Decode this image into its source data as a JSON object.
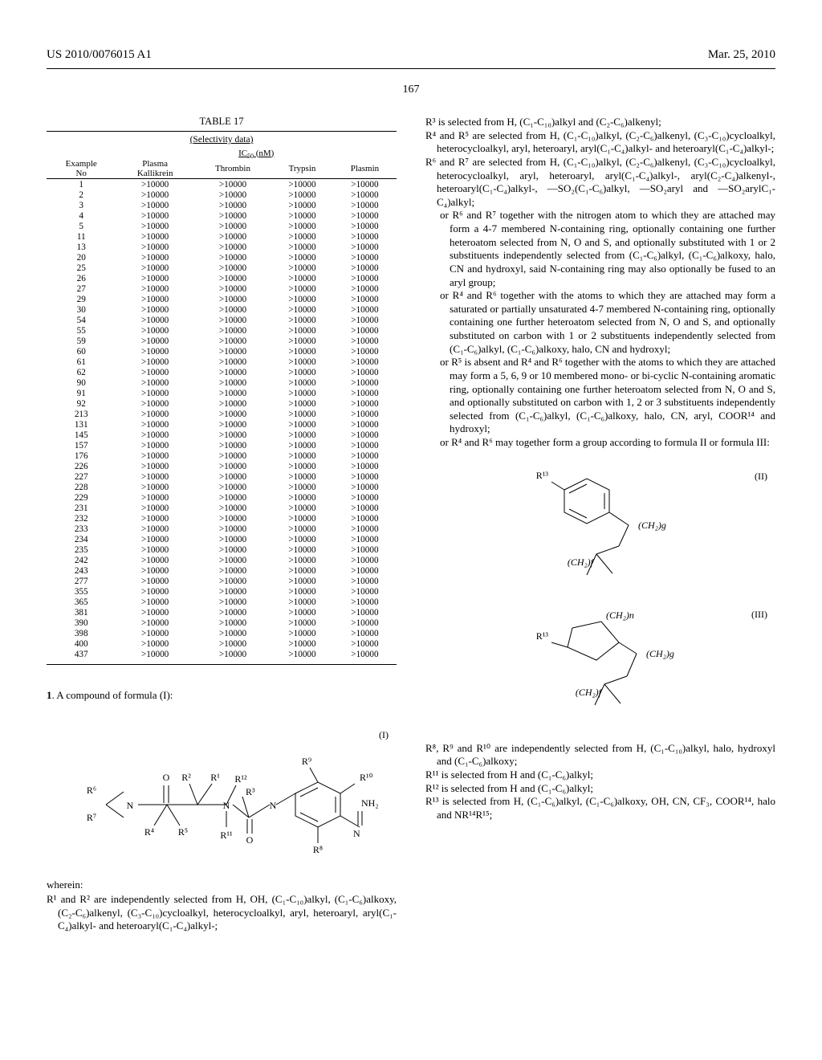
{
  "header": {
    "patent_no": "US 2010/0076015 A1",
    "date": "Mar. 25, 2010",
    "page": "167"
  },
  "table17": {
    "caption": "TABLE 17",
    "subcaption": "(Selectivity data)",
    "ic50_label": "IC",
    "ic50_sub": "50",
    "ic50_unit": "(nM)",
    "col_headers": {
      "ex_line1": "Example",
      "ex_line2": "No",
      "pk_line1": "Plasma",
      "pk_line2": "Kallikrein",
      "thrombin": "Thrombin",
      "trypsin": "Trypsin",
      "plasmin": "Plasmin"
    },
    "example_nos": [
      1,
      2,
      3,
      4,
      5,
      11,
      13,
      20,
      25,
      26,
      27,
      29,
      30,
      54,
      55,
      59,
      60,
      61,
      62,
      90,
      91,
      92,
      213,
      131,
      145,
      157,
      176,
      226,
      227,
      228,
      229,
      231,
      232,
      233,
      234,
      235,
      242,
      243,
      277,
      355,
      365,
      381,
      390,
      398,
      400,
      437
    ],
    "cell_value": ">10000"
  },
  "claim": {
    "number": "1",
    "preamble": ". A compound of formula (I):",
    "formula_tag": "(I)",
    "wherein": "wherein:"
  },
  "defs_left": {
    "r1r2": "R¹ and R² are independently selected from H, OH, (C₁-C₁₀)alkyl, (C₁-C₆)alkoxy, (C₂-C₆)alkenyl, (C₃-C₁₀)cycloalkyl, heterocycloalkyl, aryl, heteroaryl, aryl(C₁-C₄)alkyl- and heteroaryl(C₁-C₄)alkyl-;"
  },
  "defs_right": {
    "r3": "R³ is selected from H, (C₁-C₁₀)alkyl and (C₂-C₆)alkenyl;",
    "r4r5": "R⁴ and R⁵ are selected from H, (C₁-C₁₀)alkyl, (C₂-C₆)alkenyl, (C₃-C₁₀)cycloalkyl, heterocycloalkyl, aryl, heteroaryl, aryl(C₁-C₄)alkyl- and heteroaryl(C₁-C₄)alkyl-;",
    "r6r7": "R⁶ and R⁷ are selected from H, (C₁-C₁₀)alkyl, (C₂-C₆)alkenyl, (C₃-C₁₀)cycloalkyl, heterocycloalkyl, aryl, heteroaryl, aryl(C₁-C₄)alkyl-, aryl(C₂-C₄)alkenyl-, heteroaryl(C₁-C₄)alkyl-, —SO₂(C₁-C₆)alkyl, —SO₂aryl and —SO₂arylC₁-C₄)alkyl;",
    "r6r7_or": "or R⁶ and R⁷ together with the nitrogen atom to which they are attached may form a 4-7 membered N-containing ring, optionally containing one further heteroatom selected from N, O and S, and optionally substituted with 1 or 2 substituents independently selected from (C₁-C₆)alkyl, (C₁-C₆)alkoxy, halo, CN and hydroxyl, said N-containing ring may also optionally be fused to an aryl group;",
    "r4r6_or": "or R⁴ and R⁶ together with the atoms to which they are attached may form a saturated or partially unsaturated 4-7 membered N-containing ring, optionally containing one further heteroatom selected from N, O and S, and optionally substituted on carbon with 1 or 2 substituents independently selected from (C₁-C₆)alkyl, (C₁-C₆)alkoxy, halo, CN and hydroxyl;",
    "r5absent": "or R⁵ is absent and R⁴ and R⁶ together with the atoms to which they are attached may form a 5, 6, 9 or 10 membered mono- or bi-cyclic N-containing aromatic ring, optionally containing one further heteroatom selected from N, O and S, and optionally substituted on carbon with 1, 2 or 3 substituents independently selected from (C₁-C₆)alkyl, (C₁-C₆)alkoxy, halo, CN, aryl, COOR¹⁴ and hydroxyl;",
    "r4r6_group": "or R⁴ and R⁶ may together form a group according to formula II or formula III:",
    "formula_II": "(II)",
    "formula_III": "(III)",
    "r8r9r10": "R⁸, R⁹ and R¹⁰ are independently selected from H, (C₁-C₁₀)alkyl, halo, hydroxyl and (C₁-C₆)alkoxy;",
    "r11": "R¹¹ is selected from H and (C₁-C₆)alkyl;",
    "r12": "R¹² is selected from H and (C₁-C₆)alkyl;",
    "r13": "R¹³ is selected from H, (C₁-C₆)alkyl, (C₁-C₆)alkoxy, OH, CN, CF₃, COOR¹⁴, halo and NR¹⁴R¹⁵;"
  },
  "formula_I": {
    "labels": {
      "R1": "R¹",
      "R2": "R²",
      "R3": "R³",
      "R4": "R⁴",
      "R5": "R⁵",
      "R6": "R⁶",
      "R7": "R⁷",
      "R8": "R⁸",
      "R9": "R⁹",
      "R10": "R¹⁰",
      "R11": "R¹¹",
      "R12": "R¹²",
      "O": "O",
      "N": "N",
      "NH2": "NH₂"
    }
  },
  "formula_II_svg": {
    "R13": "R¹³",
    "CH2g": "(CH₂)g",
    "CH2f": "(CH₂)f"
  },
  "formula_III_svg": {
    "R13": "R¹³",
    "CH2n": "(CH₂)n",
    "CH2g": "(CH₂)g",
    "CH2f": "(CH₂)f"
  },
  "svg_style": {
    "stroke": "#000000",
    "stroke_width": 1,
    "fill": "none",
    "text_fill": "#000000",
    "font_size": 12,
    "sub_size": 9
  }
}
